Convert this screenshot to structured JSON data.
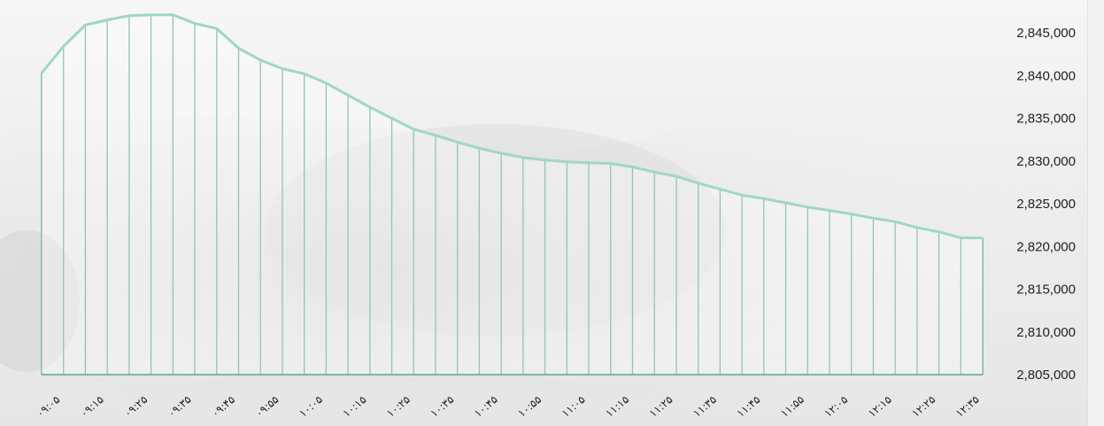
{
  "chart_data": {
    "type": "area",
    "title": "",
    "xlabel": "",
    "ylabel": "",
    "ylim": [
      2805000,
      2845000
    ],
    "y_ticks": [
      "2,845,000",
      "2,840,000",
      "2,835,000",
      "2,830,000",
      "2,825,000",
      "2,820,000",
      "2,815,000",
      "2,810,000",
      "2,805,000"
    ],
    "x_ticks": [
      "۰۹:۰۵",
      "۰۹:۱۵",
      "۰۹:۲۵",
      "۰۹:۳۵",
      "۰۹:۴۵",
      "۰۹:۵۵",
      "۱۰:۰۵",
      "۱۰:۱۵",
      "۱۰:۲۵",
      "۱۰:۳۵",
      "۱۰:۴۵",
      "۱۰:۵۵",
      "۱۱:۰۵",
      "۱۱:۱۵",
      "۱۱:۲۵",
      "۱۱:۳۵",
      "۱۱:۴۵",
      "۱۱:۵۵",
      "۱۲:۰۵",
      "۱۲:۱۵",
      "۱۲:۲۵",
      "۱۲:۳۵"
    ],
    "values": [
      2840300,
      2843400,
      2845900,
      2846500,
      2847000,
      2847100,
      2847100,
      2846100,
      2845500,
      2843200,
      2841800,
      2840800,
      2840200,
      2839100,
      2837700,
      2836300,
      2835000,
      2833700,
      2833000,
      2832200,
      2831500,
      2830900,
      2830400,
      2830100,
      2829900,
      2829800,
      2829700,
      2829300,
      2828700,
      2828200,
      2827400,
      2826700,
      2826000,
      2825600,
      2825100,
      2824600,
      2824200,
      2823800,
      2823300,
      2822900,
      2822200,
      2821700,
      2821000,
      2821000
    ],
    "grid": false,
    "legend": "none",
    "colors": {
      "line": "#9fd7c1",
      "fill": "#ffffff",
      "dropline": "#58a592"
    }
  }
}
